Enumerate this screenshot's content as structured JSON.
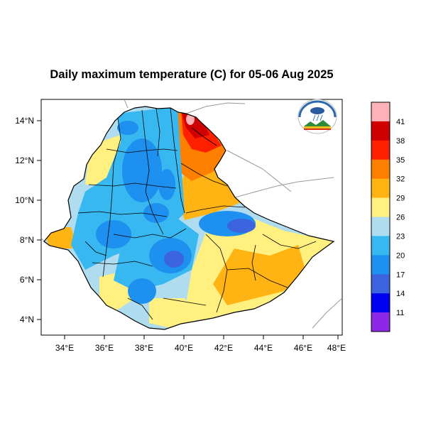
{
  "title": "Daily maximum temperature (C) for 05-06 Aug 2025",
  "map": {
    "lat_ticks": [
      "14°N",
      "12°N",
      "10°N",
      "8°N",
      "6°N",
      "4°N"
    ],
    "lon_ticks": [
      "34°E",
      "36°E",
      "38°E",
      "40°E",
      "42°E",
      "44°E",
      "46°E",
      "48°E"
    ],
    "lat_range": [
      3.2,
      15.0
    ],
    "lon_range": [
      33.0,
      48.2
    ]
  },
  "colorbar": {
    "levels": [
      "41",
      "38",
      "35",
      "32",
      "29",
      "26",
      "23",
      "20",
      "17",
      "14",
      "11"
    ],
    "colors": [
      "#ffb3b8",
      "#d00000",
      "#ff2000",
      "#ff8000",
      "#ffb414",
      "#fff080",
      "#b0dcf0",
      "#38b8f0",
      "#1e90f0",
      "#3c64e0",
      "#0000f0",
      "#8c28e6"
    ]
  },
  "logo": {
    "icon": "ethiopian-meteorology-institute-logo"
  }
}
